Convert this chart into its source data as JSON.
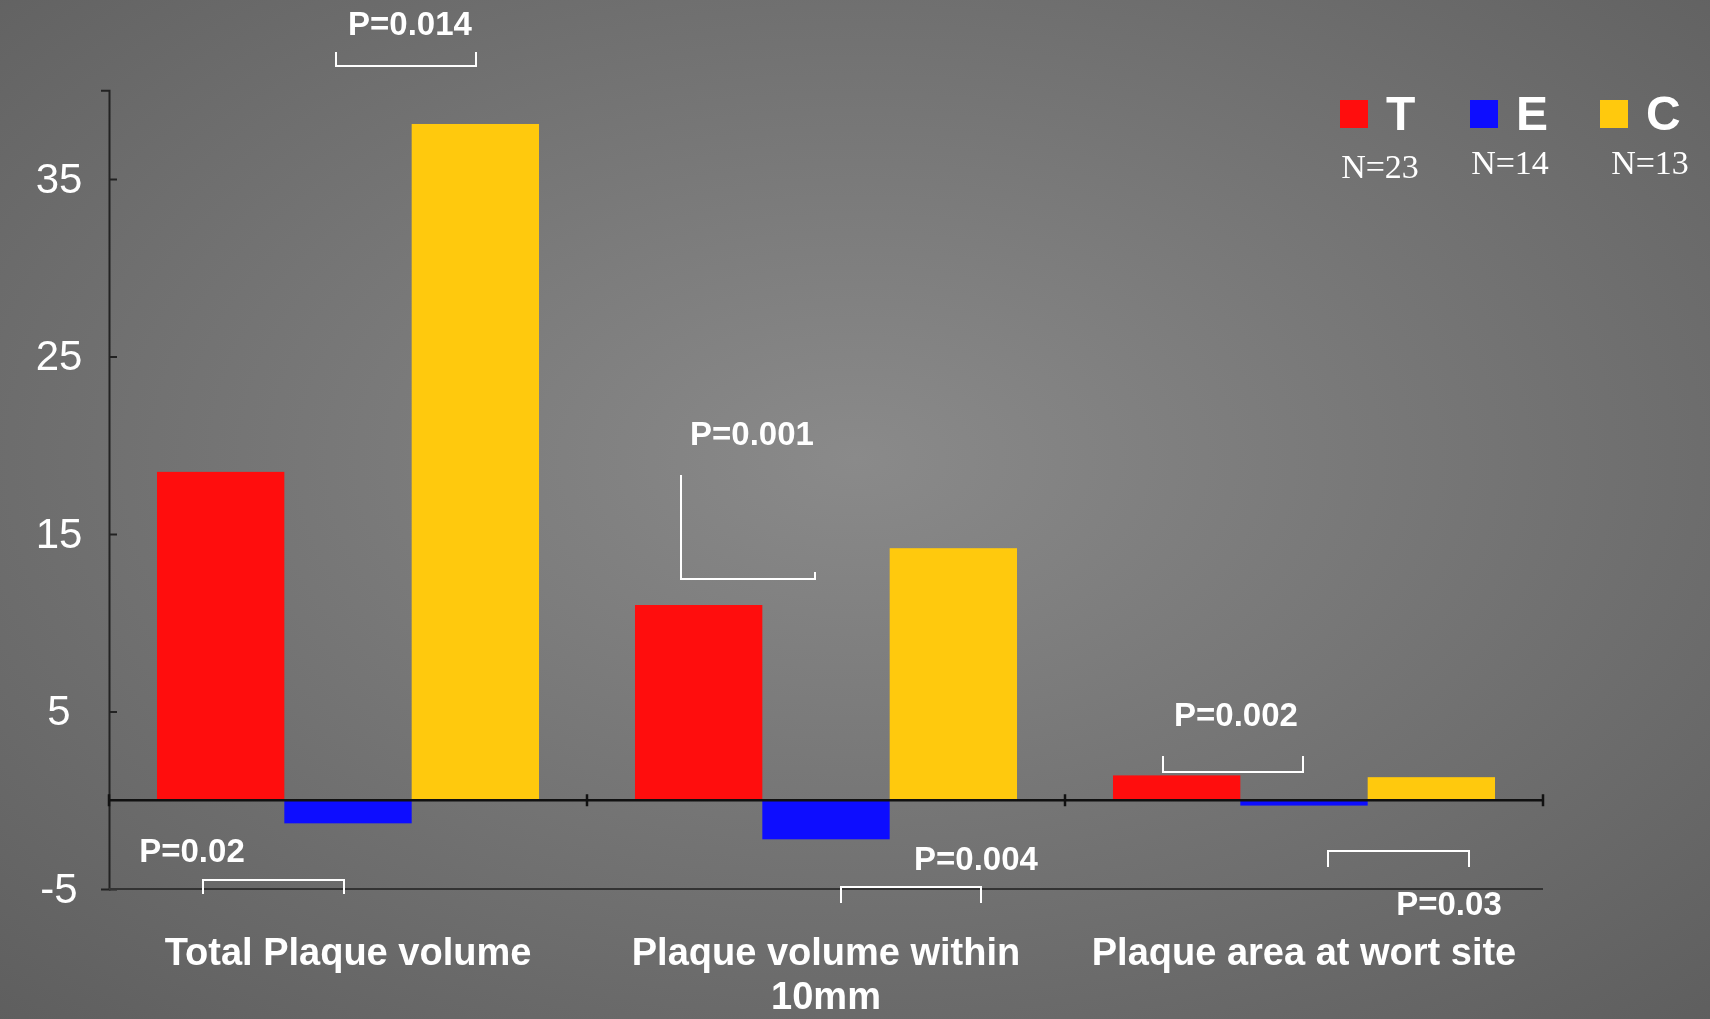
{
  "chart_data": {
    "type": "bar",
    "categories": [
      "Total Plaque volume",
      "Plaque volume within 10mm",
      "Plaque area at wort site"
    ],
    "series": [
      {
        "name": "T",
        "color": "#ff0d0d",
        "values": [
          18.5,
          11.0,
          1.4
        ]
      },
      {
        "name": "E",
        "color": "#0d0dff",
        "values": [
          -1.3,
          -2.2,
          -0.3
        ]
      },
      {
        "name": "C",
        "color": "#ffc90d",
        "values": [
          38.1,
          14.2,
          1.3
        ]
      }
    ],
    "ylim": [
      -5,
      40
    ],
    "yticks": [
      -5,
      5,
      15,
      25,
      35
    ],
    "grid": false,
    "legend": "top right",
    "annotations": [
      "N=23",
      "N=14",
      "N=13",
      "P=0.014",
      "P=0.02",
      "P=0.001",
      "P=0.004",
      "P=0.002",
      "P=0.03"
    ]
  }
}
